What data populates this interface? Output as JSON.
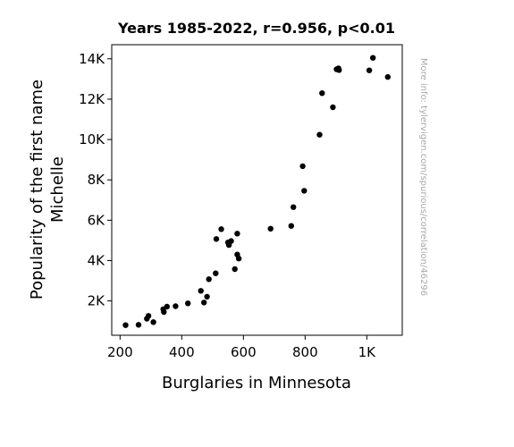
{
  "chart_data": {
    "type": "scatter",
    "title": "Years 1985-2022, r=0.956, p<0.01",
    "xlabel": "Burglaries in Minnesota",
    "ylabel_lines": [
      "Popularity of the first name",
      "Michelle"
    ],
    "watermark": "More info: tylervigen.com/spurious/correlation/46296",
    "xlim": [
      173,
      1115
    ],
    "ylim": [
      300,
      14700
    ],
    "x_ticks": [
      {
        "value": 200,
        "label": "200"
      },
      {
        "value": 400,
        "label": "400"
      },
      {
        "value": 600,
        "label": "600"
      },
      {
        "value": 800,
        "label": "800"
      },
      {
        "value": 1000,
        "label": "1K"
      }
    ],
    "y_ticks": [
      {
        "value": 2000,
        "label": "2K"
      },
      {
        "value": 4000,
        "label": "4K"
      },
      {
        "value": 6000,
        "label": "6K"
      },
      {
        "value": 8000,
        "label": "8K"
      },
      {
        "value": 10000,
        "label": "10K"
      },
      {
        "value": 12000,
        "label": "12K"
      },
      {
        "value": 14000,
        "label": "14K"
      }
    ],
    "grid": false,
    "marker_color": "#000000",
    "points": [
      {
        "x": 1020,
        "y": 14050
      },
      {
        "x": 1068,
        "y": 13100
      },
      {
        "x": 1008,
        "y": 13430
      },
      {
        "x": 902,
        "y": 13480
      },
      {
        "x": 908,
        "y": 13530
      },
      {
        "x": 910,
        "y": 13440
      },
      {
        "x": 855,
        "y": 12300
      },
      {
        "x": 890,
        "y": 11600
      },
      {
        "x": 847,
        "y": 10240
      },
      {
        "x": 792,
        "y": 8680
      },
      {
        "x": 797,
        "y": 7460
      },
      {
        "x": 762,
        "y": 6650
      },
      {
        "x": 755,
        "y": 5720
      },
      {
        "x": 688,
        "y": 5580
      },
      {
        "x": 528,
        "y": 5560
      },
      {
        "x": 580,
        "y": 5340
      },
      {
        "x": 512,
        "y": 5070
      },
      {
        "x": 560,
        "y": 4970
      },
      {
        "x": 550,
        "y": 4900
      },
      {
        "x": 553,
        "y": 4770
      },
      {
        "x": 580,
        "y": 4300
      },
      {
        "x": 585,
        "y": 4100
      },
      {
        "x": 572,
        "y": 3580
      },
      {
        "x": 510,
        "y": 3370
      },
      {
        "x": 488,
        "y": 3080
      },
      {
        "x": 462,
        "y": 2500
      },
      {
        "x": 482,
        "y": 2210
      },
      {
        "x": 472,
        "y": 1920
      },
      {
        "x": 420,
        "y": 1880
      },
      {
        "x": 380,
        "y": 1740
      },
      {
        "x": 352,
        "y": 1720
      },
      {
        "x": 340,
        "y": 1590
      },
      {
        "x": 342,
        "y": 1450
      },
      {
        "x": 292,
        "y": 1260
      },
      {
        "x": 287,
        "y": 1120
      },
      {
        "x": 308,
        "y": 950
      },
      {
        "x": 260,
        "y": 820
      },
      {
        "x": 218,
        "y": 800
      }
    ]
  }
}
